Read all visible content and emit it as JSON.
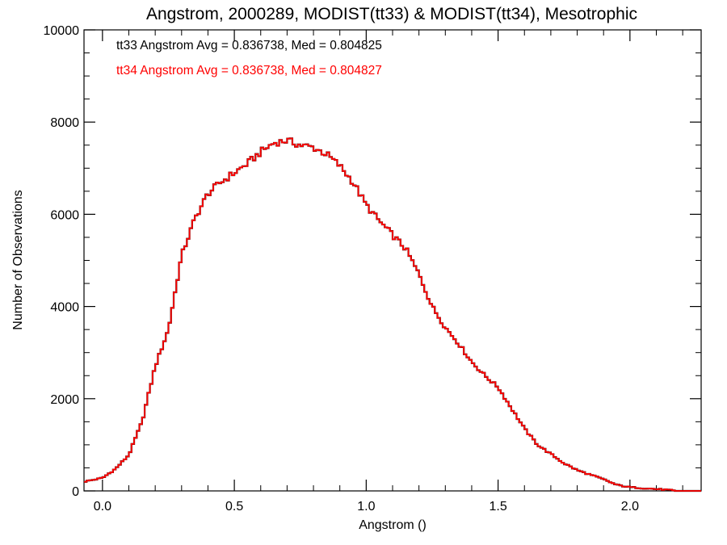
{
  "chart_data": {
    "type": "histogram-step",
    "title": "Angstrom, 2000289, MODIST(tt33) & MODIST(tt34), Mesotrophic",
    "xlabel": "Angstrom ()",
    "ylabel": "Number of Observations",
    "xlim": [
      -0.07,
      2.27
    ],
    "ylim": [
      0,
      10000
    ],
    "x_ticks": [
      0.0,
      0.5,
      1.0,
      1.5,
      2.0
    ],
    "x_tick_labels": [
      "0.0",
      "0.5",
      "1.0",
      "1.5",
      "2.0"
    ],
    "y_ticks": [
      0,
      2000,
      4000,
      6000,
      8000,
      10000
    ],
    "y_tick_labels": [
      "0",
      "2000",
      "4000",
      "6000",
      "8000",
      "10000"
    ],
    "grid": false,
    "legend_position": "top-left",
    "annotations": [
      {
        "text": "tt33 Angstrom Avg = 0.836738, Med = 0.804825",
        "color": "#000000"
      },
      {
        "text": "tt34 Angstrom Avg = 0.836738, Med = 0.804827",
        "color": "#ff0000"
      }
    ],
    "bin_width": 0.01,
    "series": [
      {
        "color": "#000000",
        "x": [
          -0.07,
          0.0,
          0.05,
          0.1,
          0.15,
          0.2,
          0.25,
          0.3,
          0.35,
          0.4,
          0.45,
          0.5,
          0.55,
          0.6,
          0.65,
          0.7,
          0.75,
          0.8,
          0.85,
          0.9,
          0.95,
          1.0,
          1.05,
          1.1,
          1.15,
          1.2,
          1.25,
          1.3,
          1.35,
          1.4,
          1.45,
          1.5,
          1.55,
          1.6,
          1.65,
          1.7,
          1.75,
          1.8,
          1.85,
          1.9,
          1.95,
          2.0,
          2.05,
          2.1,
          2.15,
          2.17,
          2.27
        ],
        "y": [
          200,
          280,
          480,
          780,
          1500,
          2700,
          3500,
          5100,
          5900,
          6450,
          6700,
          6900,
          7100,
          7350,
          7550,
          7600,
          7500,
          7450,
          7300,
          7050,
          6700,
          6200,
          5850,
          5550,
          5250,
          4700,
          4000,
          3550,
          3200,
          2800,
          2500,
          2250,
          1800,
          1350,
          1000,
          800,
          600,
          450,
          350,
          250,
          130,
          80,
          60,
          40,
          20,
          0,
          0
        ]
      },
      {
        "color": "#ff0000",
        "x": [
          -0.07,
          0.0,
          0.05,
          0.1,
          0.15,
          0.2,
          0.25,
          0.3,
          0.35,
          0.4,
          0.45,
          0.5,
          0.55,
          0.6,
          0.65,
          0.7,
          0.75,
          0.8,
          0.85,
          0.9,
          0.95,
          1.0,
          1.05,
          1.1,
          1.15,
          1.2,
          1.25,
          1.3,
          1.35,
          1.4,
          1.45,
          1.5,
          1.55,
          1.6,
          1.65,
          1.7,
          1.75,
          1.8,
          1.85,
          1.9,
          1.95,
          2.0,
          2.05,
          2.1,
          2.15,
          2.17,
          2.27
        ],
        "y": [
          200,
          280,
          480,
          780,
          1500,
          2700,
          3500,
          5100,
          5900,
          6450,
          6700,
          6900,
          7100,
          7350,
          7550,
          7600,
          7500,
          7450,
          7300,
          7050,
          6700,
          6200,
          5850,
          5550,
          5250,
          4700,
          4000,
          3550,
          3200,
          2800,
          2500,
          2250,
          1800,
          1350,
          1000,
          800,
          600,
          450,
          350,
          250,
          130,
          80,
          60,
          40,
          20,
          0,
          0
        ]
      }
    ]
  }
}
